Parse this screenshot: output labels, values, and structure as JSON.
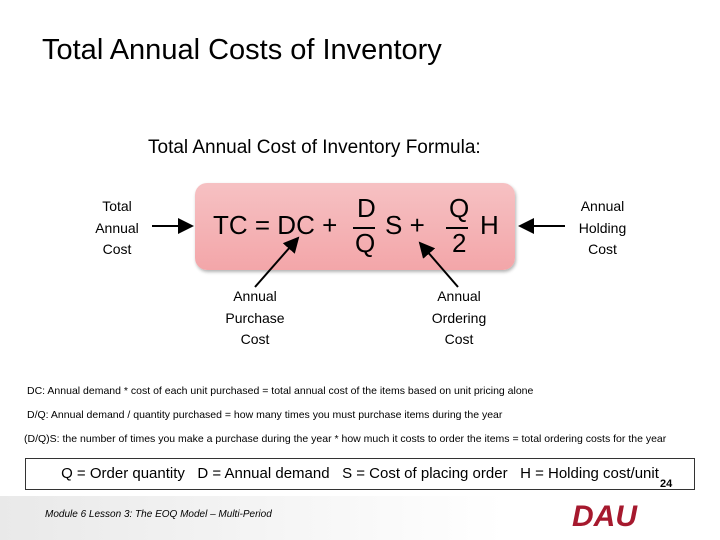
{
  "header": {
    "title": "Total Annual Costs of Inventory"
  },
  "subtitle": "Total Annual Cost of Inventory Formula:",
  "formula": {
    "lead": "TC = DC +",
    "frac1_num": "D",
    "frac1_den": "Q",
    "mid": "S +",
    "frac2_num": "Q",
    "frac2_den": "2",
    "tail": "H"
  },
  "labels": {
    "total": [
      "Total",
      "Annual",
      "Cost"
    ],
    "holding": [
      "Annual",
      "Holding",
      "Cost"
    ],
    "purchase": [
      "Annual",
      "Purchase",
      "Cost"
    ],
    "ordering": [
      "Annual",
      "Ordering",
      "Cost"
    ]
  },
  "notes": [
    "DC: Annual demand * cost of each unit purchased = total annual cost of the items based on unit pricing alone",
    "D/Q: Annual demand / quantity purchased = how many times you must purchase items during the year",
    "(D/Q)S: the number of times you make a purchase during the year * how much it costs to order the items = total ordering costs for the year"
  ],
  "legend": "Q = Order quantity   D = Annual demand   S = Cost of placing order   H = Holding cost/unit",
  "footer": {
    "text": "Module 6 Lesson 3: The EOQ Model – Multi-Period",
    "page": "24",
    "logo": "DAU"
  }
}
